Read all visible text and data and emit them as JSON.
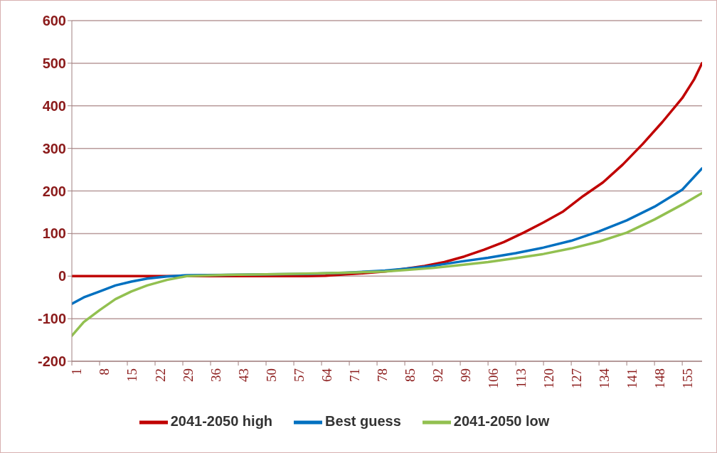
{
  "chart_data": {
    "type": "line",
    "xlim": [
      1,
      160
    ],
    "xticks": [
      1,
      8,
      15,
      22,
      29,
      36,
      43,
      50,
      57,
      64,
      71,
      78,
      85,
      92,
      99,
      106,
      113,
      120,
      127,
      134,
      141,
      148,
      155
    ],
    "ylim": [
      -200,
      600
    ],
    "yticks": [
      -200,
      -100,
      0,
      100,
      200,
      300,
      400,
      500,
      600
    ],
    "grid": "y",
    "legend": "bottom",
    "marker": "none",
    "line_style": "solid",
    "series": [
      {
        "name": "2041-2050 high",
        "color": "#c00000",
        "x": [
          1,
          10,
          20,
          30,
          40,
          50,
          60,
          65,
          70,
          75,
          80,
          85,
          90,
          95,
          100,
          105,
          110,
          115,
          120,
          125,
          130,
          135,
          140,
          145,
          150,
          155,
          158,
          160
        ],
        "values": [
          0,
          0,
          0,
          0,
          0,
          0,
          0,
          1,
          4,
          7,
          11,
          17,
          24,
          33,
          46,
          62,
          80,
          102,
          126,
          152,
          188,
          220,
          262,
          310,
          362,
          418,
          462,
          500
        ]
      },
      {
        "name": "Best guess",
        "color": "#0070c0",
        "x": [
          1,
          4,
          8,
          12,
          16,
          20,
          25,
          30,
          40,
          50,
          60,
          70,
          80,
          85,
          92,
          99,
          106,
          113,
          120,
          127,
          134,
          141,
          148,
          155,
          160
        ],
        "values": [
          -65,
          -50,
          -36,
          -22,
          -13,
          -6,
          -1,
          2,
          3,
          4,
          5,
          8,
          13,
          17,
          24,
          34,
          43,
          54,
          67,
          83,
          105,
          131,
          163,
          203,
          253
        ]
      },
      {
        "name": "2041-2050 low",
        "color": "#92c050",
        "x": [
          1,
          4,
          8,
          12,
          16,
          20,
          25,
          30,
          40,
          50,
          60,
          70,
          80,
          85,
          92,
          99,
          106,
          113,
          120,
          127,
          134,
          141,
          148,
          155,
          160
        ],
        "values": [
          -140,
          -108,
          -80,
          -54,
          -36,
          -22,
          -9,
          0,
          3,
          4,
          6,
          8,
          11,
          14,
          19,
          26,
          33,
          42,
          52,
          65,
          81,
          102,
          133,
          168,
          195
        ]
      }
    ]
  }
}
